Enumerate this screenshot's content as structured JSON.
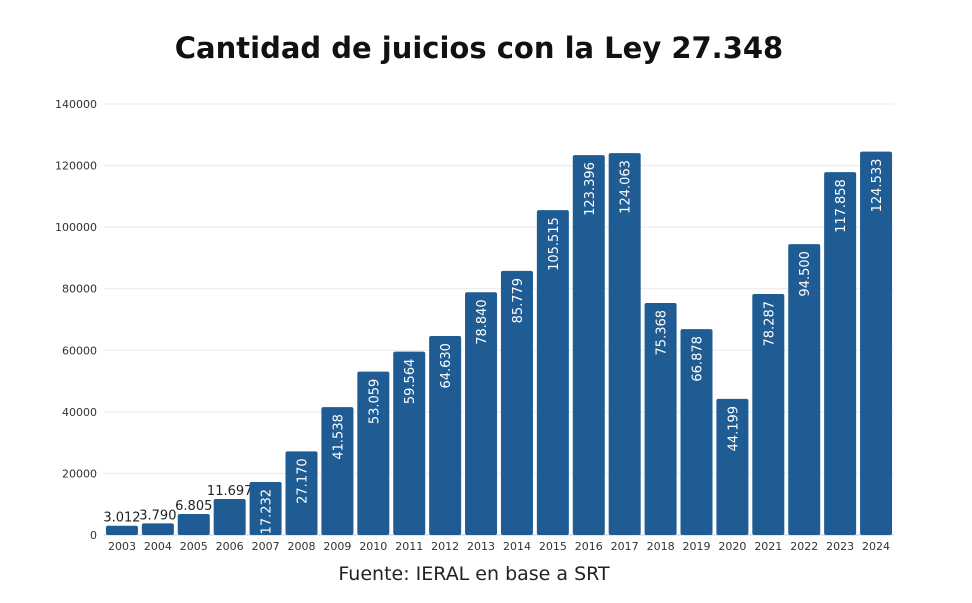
{
  "chart_data": {
    "type": "bar",
    "title": "Cantidad de juicios con la Ley 27.348",
    "source": "Fuente: IERAL en base a SRT",
    "xlabel": "",
    "ylabel": "",
    "ylim": [
      0,
      140000
    ],
    "yticks": [
      "0",
      "20000",
      "40000",
      "60000",
      "80000",
      "100000",
      "120000",
      "140000"
    ],
    "grid": true,
    "bar_color": "#1f5c94",
    "categories": [
      "2003",
      "2004",
      "2005",
      "2006",
      "2007",
      "2008",
      "2009",
      "2010",
      "2011",
      "2012",
      "2013",
      "2014",
      "2015",
      "2016",
      "2017",
      "2018",
      "2019",
      "2020",
      "2021",
      "2022",
      "2023",
      "2024"
    ],
    "values": [
      3012,
      3790,
      6805,
      11697,
      17232,
      27170,
      41538,
      53059,
      59564,
      64630,
      78840,
      85779,
      105515,
      123396,
      124063,
      75368,
      66878,
      44199,
      78287,
      94500,
      117858,
      124533
    ],
    "data_labels": [
      "3.012",
      "3.790",
      "6.805",
      "11.697",
      "17.232",
      "27.170",
      "41.538",
      "53.059",
      "59.564",
      "64.630",
      "78.840",
      "85.779",
      "105.515",
      "123.396",
      "124.063",
      "75.368",
      "66.878",
      "44.199",
      "78.287",
      "94.500",
      "117.858",
      "124.533"
    ]
  }
}
